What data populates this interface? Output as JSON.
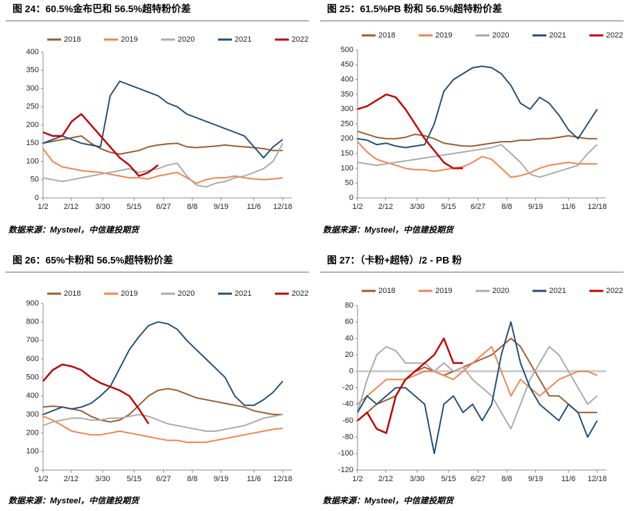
{
  "chart_data": [
    {
      "type": "line",
      "title": "图 24：60.5%金布巴和 56.5%超特粉价差",
      "source": "数据来源：Mysteel，中信建投期货",
      "x": [
        1,
        15,
        29,
        43,
        57,
        71,
        85,
        99,
        113,
        127,
        141,
        155,
        169,
        183,
        197,
        211,
        225,
        239,
        253,
        267,
        281,
        295,
        309,
        323,
        337,
        351
      ],
      "xlim": [
        1,
        364
      ],
      "xticks": [
        {
          "value": 1,
          "label": "1/2"
        },
        {
          "value": 42,
          "label": "2/12"
        },
        {
          "value": 88,
          "label": "3/30"
        },
        {
          "value": 134,
          "label": "5/15"
        },
        {
          "value": 177,
          "label": "6/27"
        },
        {
          "value": 219,
          "label": "8/8"
        },
        {
          "value": 261,
          "label": "9/19"
        },
        {
          "value": 309,
          "label": "11/6"
        },
        {
          "value": 351,
          "label": "12/18"
        }
      ],
      "ylim": [
        0,
        400
      ],
      "yticks": [
        0,
        50,
        100,
        150,
        200,
        250,
        300,
        350,
        400
      ],
      "series": [
        {
          "name": "2018",
          "color": "#9e5a2e",
          "values": [
            150,
            155,
            160,
            165,
            170,
            150,
            135,
            125,
            120,
            125,
            130,
            140,
            145,
            148,
            150,
            140,
            138,
            140,
            142,
            145,
            142,
            140,
            138,
            135,
            130,
            130
          ]
        },
        {
          "name": "2019",
          "color": "#f4824a",
          "values": [
            135,
            100,
            85,
            80,
            75,
            72,
            70,
            65,
            60,
            55,
            55,
            52,
            60,
            65,
            70,
            55,
            40,
            50,
            55,
            55,
            60,
            55,
            52,
            50,
            52,
            55
          ]
        },
        {
          "name": "2020",
          "color": "#aaaaaa",
          "values": [
            55,
            50,
            45,
            50,
            55,
            60,
            65,
            70,
            75,
            80,
            70,
            75,
            80,
            90,
            95,
            60,
            35,
            30,
            40,
            45,
            55,
            60,
            70,
            80,
            100,
            150
          ]
        },
        {
          "name": "2021",
          "color": "#1f4e79",
          "values": [
            150,
            160,
            170,
            160,
            150,
            145,
            140,
            280,
            320,
            310,
            300,
            290,
            280,
            260,
            250,
            230,
            220,
            210,
            200,
            190,
            180,
            170,
            140,
            110,
            140,
            160
          ]
        },
        {
          "name": "2022",
          "color": "#c00000",
          "values": [
            180,
            170,
            170,
            210,
            230,
            200,
            170,
            140,
            110,
            90,
            60,
            70,
            90,
            null,
            null,
            null,
            null,
            null,
            null,
            null,
            null,
            null,
            null,
            null,
            null,
            null
          ]
        }
      ]
    },
    {
      "type": "line",
      "title": "图 25：61.5%PB 粉和 56.5%超特粉价差",
      "source": "数据来源：Mysteel，中信建投期货",
      "x": [
        1,
        15,
        29,
        43,
        57,
        71,
        85,
        99,
        113,
        127,
        141,
        155,
        169,
        183,
        197,
        211,
        225,
        239,
        253,
        267,
        281,
        295,
        309,
        323,
        337,
        351
      ],
      "xlim": [
        1,
        364
      ],
      "xticks": [
        {
          "value": 1,
          "label": "1/2"
        },
        {
          "value": 42,
          "label": "2/12"
        },
        {
          "value": 88,
          "label": "3/30"
        },
        {
          "value": 134,
          "label": "5/15"
        },
        {
          "value": 177,
          "label": "6/27"
        },
        {
          "value": 219,
          "label": "8/8"
        },
        {
          "value": 261,
          "label": "9/19"
        },
        {
          "value": 309,
          "label": "11/6"
        },
        {
          "value": 351,
          "label": "12/18"
        }
      ],
      "ylim": [
        0,
        500
      ],
      "yticks": [
        0,
        50,
        100,
        150,
        200,
        250,
        300,
        350,
        400,
        450,
        500
      ],
      "series": [
        {
          "name": "2018",
          "color": "#9e5a2e",
          "values": [
            225,
            215,
            205,
            200,
            200,
            205,
            215,
            210,
            200,
            185,
            180,
            175,
            175,
            180,
            185,
            190,
            190,
            195,
            195,
            200,
            200,
            205,
            210,
            205,
            200,
            200
          ]
        },
        {
          "name": "2019",
          "color": "#f4824a",
          "values": [
            190,
            155,
            130,
            120,
            110,
            100,
            95,
            95,
            90,
            95,
            100,
            105,
            120,
            140,
            130,
            100,
            70,
            75,
            85,
            100,
            110,
            115,
            120,
            115,
            115,
            115
          ]
        },
        {
          "name": "2020",
          "color": "#aaaaaa",
          "values": [
            120,
            115,
            110,
            115,
            120,
            125,
            130,
            135,
            140,
            145,
            150,
            155,
            160,
            165,
            170,
            180,
            150,
            120,
            80,
            70,
            80,
            90,
            100,
            110,
            150,
            180
          ]
        },
        {
          "name": "2021",
          "color": "#1f4e79",
          "values": [
            200,
            195,
            180,
            185,
            175,
            170,
            175,
            180,
            250,
            360,
            400,
            420,
            440,
            445,
            440,
            420,
            380,
            320,
            300,
            340,
            320,
            280,
            230,
            200,
            250,
            300
          ]
        },
        {
          "name": "2022",
          "color": "#c00000",
          "values": [
            300,
            310,
            330,
            350,
            340,
            300,
            250,
            200,
            160,
            120,
            100,
            100,
            null,
            null,
            null,
            null,
            null,
            null,
            null,
            null,
            null,
            null,
            null,
            null,
            null,
            null
          ]
        }
      ]
    },
    {
      "type": "line",
      "title": "图 26：65%卡粉和 56.5%超特粉价差",
      "source": "数据来源：Mysteel，中信建投期货",
      "x": [
        1,
        15,
        29,
        43,
        57,
        71,
        85,
        99,
        113,
        127,
        141,
        155,
        169,
        183,
        197,
        211,
        225,
        239,
        253,
        267,
        281,
        295,
        309,
        323,
        337,
        351
      ],
      "xlim": [
        1,
        364
      ],
      "xticks": [
        {
          "value": 1,
          "label": "1/2"
        },
        {
          "value": 42,
          "label": "2/12"
        },
        {
          "value": 88,
          "label": "3/30"
        },
        {
          "value": 134,
          "label": "5/15"
        },
        {
          "value": 177,
          "label": "6/27"
        },
        {
          "value": 219,
          "label": "8/8"
        },
        {
          "value": 261,
          "label": "9/19"
        },
        {
          "value": 309,
          "label": "11/6"
        },
        {
          "value": 351,
          "label": "12/18"
        }
      ],
      "ylim": [
        0,
        900
      ],
      "yticks": [
        0,
        100,
        200,
        300,
        400,
        500,
        600,
        700,
        800,
        900
      ],
      "series": [
        {
          "name": "2018",
          "color": "#9e5a2e",
          "values": [
            340,
            345,
            340,
            330,
            320,
            290,
            270,
            260,
            270,
            300,
            350,
            400,
            430,
            440,
            430,
            410,
            390,
            380,
            370,
            360,
            350,
            340,
            320,
            310,
            300,
            300
          ]
        },
        {
          "name": "2019",
          "color": "#f4824a",
          "values": [
            290,
            270,
            240,
            210,
            200,
            190,
            190,
            200,
            210,
            200,
            190,
            180,
            170,
            160,
            160,
            150,
            150,
            150,
            160,
            170,
            180,
            190,
            200,
            210,
            220,
            225
          ]
        },
        {
          "name": "2020",
          "color": "#aaaaaa",
          "values": [
            240,
            260,
            270,
            280,
            280,
            270,
            270,
            280,
            280,
            290,
            300,
            290,
            270,
            250,
            240,
            230,
            220,
            210,
            210,
            220,
            230,
            240,
            260,
            280,
            290,
            300
          ]
        },
        {
          "name": "2021",
          "color": "#1f4e79",
          "values": [
            300,
            320,
            340,
            330,
            340,
            360,
            400,
            450,
            550,
            650,
            720,
            780,
            800,
            790,
            760,
            700,
            650,
            600,
            550,
            500,
            400,
            350,
            350,
            380,
            420,
            480
          ]
        },
        {
          "name": "2022",
          "color": "#c00000",
          "values": [
            480,
            540,
            570,
            560,
            540,
            500,
            470,
            450,
            430,
            400,
            330,
            250,
            null,
            null,
            null,
            null,
            null,
            null,
            null,
            null,
            null,
            null,
            null,
            null,
            null,
            null
          ]
        }
      ]
    },
    {
      "type": "line",
      "title": "图 27：（卡粉+超特）/2 - PB 粉",
      "source": "数据来源：Mysteel，中信建投期货",
      "x": [
        1,
        15,
        29,
        43,
        57,
        71,
        85,
        99,
        113,
        127,
        141,
        155,
        169,
        183,
        197,
        211,
        225,
        239,
        253,
        267,
        281,
        295,
        309,
        323,
        337,
        351
      ],
      "xlim": [
        1,
        364
      ],
      "xticks": [
        {
          "value": 1,
          "label": "1/2"
        },
        {
          "value": 42,
          "label": "2/12"
        },
        {
          "value": 88,
          "label": "3/30"
        },
        {
          "value": 134,
          "label": "5/15"
        },
        {
          "value": 177,
          "label": "6/27"
        },
        {
          "value": 219,
          "label": "8/8"
        },
        {
          "value": 261,
          "label": "9/19"
        },
        {
          "value": 309,
          "label": "11/6"
        },
        {
          "value": 351,
          "label": "12/18"
        }
      ],
      "ylim": [
        -120,
        80
      ],
      "yticks": [
        -120,
        -100,
        -80,
        -60,
        -40,
        -20,
        0,
        20,
        40,
        60,
        80
      ],
      "series": [
        {
          "name": "2018",
          "color": "#9e5a2e",
          "values": [
            -60,
            -50,
            -40,
            -35,
            -30,
            -10,
            0,
            5,
            0,
            -5,
            0,
            5,
            10,
            15,
            20,
            30,
            40,
            30,
            10,
            -10,
            -30,
            -30,
            -40,
            -50,
            -50,
            -50
          ]
        },
        {
          "name": "2019",
          "color": "#f4824a",
          "values": [
            -40,
            -30,
            -20,
            -10,
            -10,
            -10,
            -5,
            0,
            0,
            -5,
            -10,
            0,
            10,
            20,
            30,
            0,
            -30,
            -10,
            -20,
            -30,
            -20,
            -10,
            -5,
            0,
            0,
            -5
          ]
        },
        {
          "name": "2020",
          "color": "#aaaaaa",
          "values": [
            -50,
            -10,
            20,
            30,
            25,
            10,
            10,
            10,
            0,
            10,
            0,
            5,
            -10,
            -20,
            -30,
            -50,
            -70,
            -40,
            -10,
            10,
            30,
            20,
            0,
            -20,
            -40,
            -30
          ]
        },
        {
          "name": "2021",
          "color": "#1f4e79",
          "values": [
            -50,
            -30,
            -40,
            -30,
            -20,
            -20,
            -30,
            -40,
            -100,
            -40,
            -30,
            -50,
            -40,
            -60,
            -40,
            20,
            60,
            10,
            -20,
            -40,
            -50,
            -60,
            -40,
            -50,
            -80,
            -60
          ]
        },
        {
          "name": "2022",
          "color": "#c00000",
          "values": [
            -60,
            -50,
            -70,
            -75,
            -30,
            -10,
            0,
            10,
            20,
            40,
            10,
            10,
            null,
            null,
            null,
            null,
            null,
            null,
            null,
            null,
            null,
            null,
            null,
            null,
            null,
            null
          ]
        }
      ]
    }
  ]
}
